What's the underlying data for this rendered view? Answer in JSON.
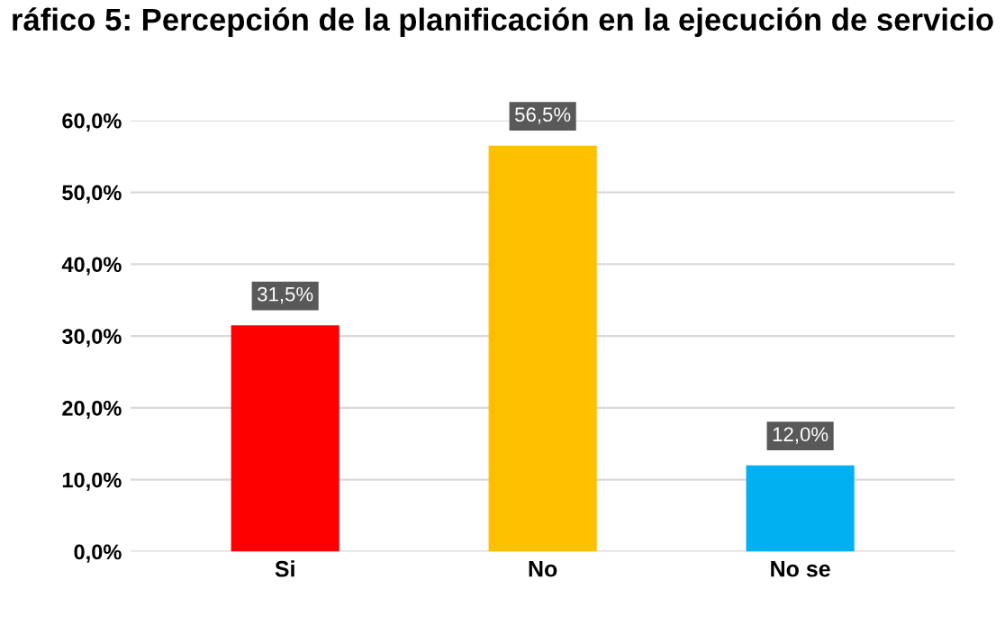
{
  "chart_data": {
    "type": "bar",
    "title": "ráfico 5: Percepción de la planificación en la ejecución de servicio",
    "categories": [
      "Si",
      "No",
      "No se"
    ],
    "values": [
      31.5,
      56.5,
      12.0
    ],
    "colors": [
      "#ff0000",
      "#ffc000",
      "#00b0f0"
    ],
    "value_labels": [
      "31,5%",
      "56,5%",
      "12,0%"
    ],
    "ylim": [
      0,
      60
    ],
    "yticks": [
      {
        "value": 0,
        "label": "0,0%"
      },
      {
        "value": 10,
        "label": "10,0%"
      },
      {
        "value": 20,
        "label": "20,0%"
      },
      {
        "value": 30,
        "label": "30,0%"
      },
      {
        "value": 40,
        "label": "40,0%"
      },
      {
        "value": 50,
        "label": "50,0%"
      },
      {
        "value": 60,
        "label": "60,0%"
      }
    ],
    "grid": "y"
  }
}
